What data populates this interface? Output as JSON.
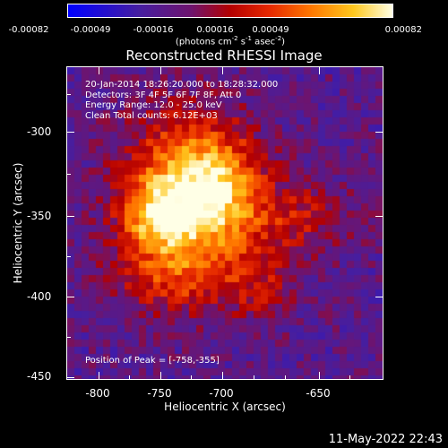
{
  "colorbar": {
    "ticks": [
      "-0.00082",
      "-0.00049",
      "-0.00016",
      "0.00016",
      "0.00049",
      "0.00082"
    ],
    "units_prefix": "(photons cm",
    "units_exp1": "-2",
    "units_mid": " s",
    "units_exp2": "-1",
    "units_mid2": " asec",
    "units_exp3": "-2",
    "units_suffix": ")"
  },
  "title": "Reconstructed RHESSI Image",
  "info": {
    "time_range": "20-Jan-2014 18:26:20.000 to 18:28:32.000",
    "detectors": "Detectors: 3F 4F 5F 6F 7F 8F, Att 0",
    "energy": "Energy Range: 12.0 - 25.0 keV",
    "clean": "Clean     Total counts: 6.12E+03",
    "peak": "Position of Peak = [-758,-355]"
  },
  "axes": {
    "x_title": "Heliocentric X (arcsec)",
    "y_title": "Heliocentric Y (arcsec)",
    "x_ticks": [
      "-800",
      "-750",
      "-700",
      "-650"
    ],
    "y_ticks": [
      "-300",
      "-350",
      "-400",
      "-450"
    ]
  },
  "footer": {
    "timestamp": "11-May-2022 22:43"
  }
}
